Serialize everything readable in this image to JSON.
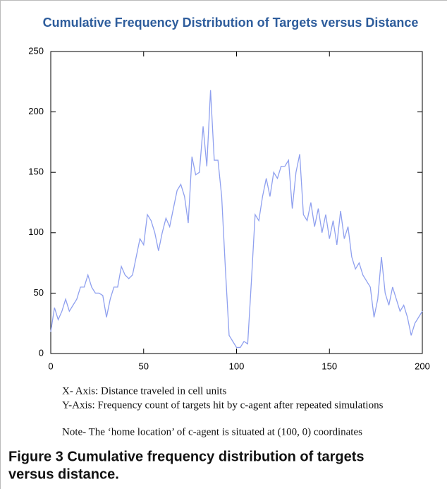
{
  "chart_data": {
    "type": "line",
    "title": "Cumulative Frequency Distribution of Targets versus Distance",
    "x": [
      0,
      2,
      4,
      6,
      8,
      10,
      12,
      14,
      16,
      18,
      20,
      22,
      24,
      26,
      28,
      30,
      32,
      34,
      36,
      38,
      40,
      42,
      44,
      46,
      48,
      50,
      52,
      54,
      56,
      58,
      60,
      62,
      64,
      66,
      68,
      70,
      72,
      74,
      76,
      78,
      80,
      82,
      84,
      86,
      88,
      90,
      92,
      94,
      96,
      98,
      100,
      102,
      104,
      106,
      108,
      110,
      112,
      114,
      116,
      118,
      120,
      122,
      124,
      126,
      128,
      130,
      132,
      134,
      136,
      138,
      140,
      142,
      144,
      146,
      148,
      150,
      152,
      154,
      156,
      158,
      160,
      162,
      164,
      166,
      168,
      170,
      172,
      174,
      176,
      178,
      180,
      182,
      184,
      186,
      188,
      190,
      192,
      194,
      196,
      198,
      200
    ],
    "series": [
      {
        "name": "Frequency count",
        "color": "#8fa0ef",
        "values": [
          18,
          38,
          28,
          35,
          45,
          35,
          40,
          45,
          55,
          55,
          65,
          55,
          50,
          50,
          48,
          30,
          45,
          55,
          55,
          72,
          65,
          62,
          65,
          80,
          95,
          90,
          115,
          110,
          100,
          85,
          100,
          112,
          105,
          120,
          135,
          140,
          130,
          108,
          163,
          148,
          150,
          188,
          155,
          218,
          160,
          160,
          130,
          70,
          15,
          10,
          5,
          5,
          10,
          8,
          60,
          115,
          110,
          130,
          145,
          130,
          150,
          145,
          155,
          155,
          160,
          120,
          150,
          165,
          115,
          110,
          125,
          105,
          120,
          100,
          115,
          95,
          110,
          90,
          118,
          95,
          105,
          80,
          70,
          75,
          65,
          60,
          55,
          30,
          45,
          80,
          50,
          40,
          55,
          45,
          35,
          40,
          30,
          15,
          25,
          30,
          35
        ]
      }
    ],
    "xlim": [
      0,
      200
    ],
    "ylim": [
      0,
      250
    ],
    "xticks": [
      0,
      50,
      100,
      150,
      200
    ],
    "yticks": [
      0,
      50,
      100,
      150,
      200,
      250
    ]
  },
  "notes": [
    "X- Axis: Distance traveled in cell units",
    "Y-Axis: Frequency count of targets hit by c-agent after repeated simulations",
    "Note- The ‘home location’ of c-agent is situated at (100, 0) coordinates"
  ],
  "caption": [
    "Figure 3 Cumulative frequency distribution of targets",
    "versus distance."
  ]
}
